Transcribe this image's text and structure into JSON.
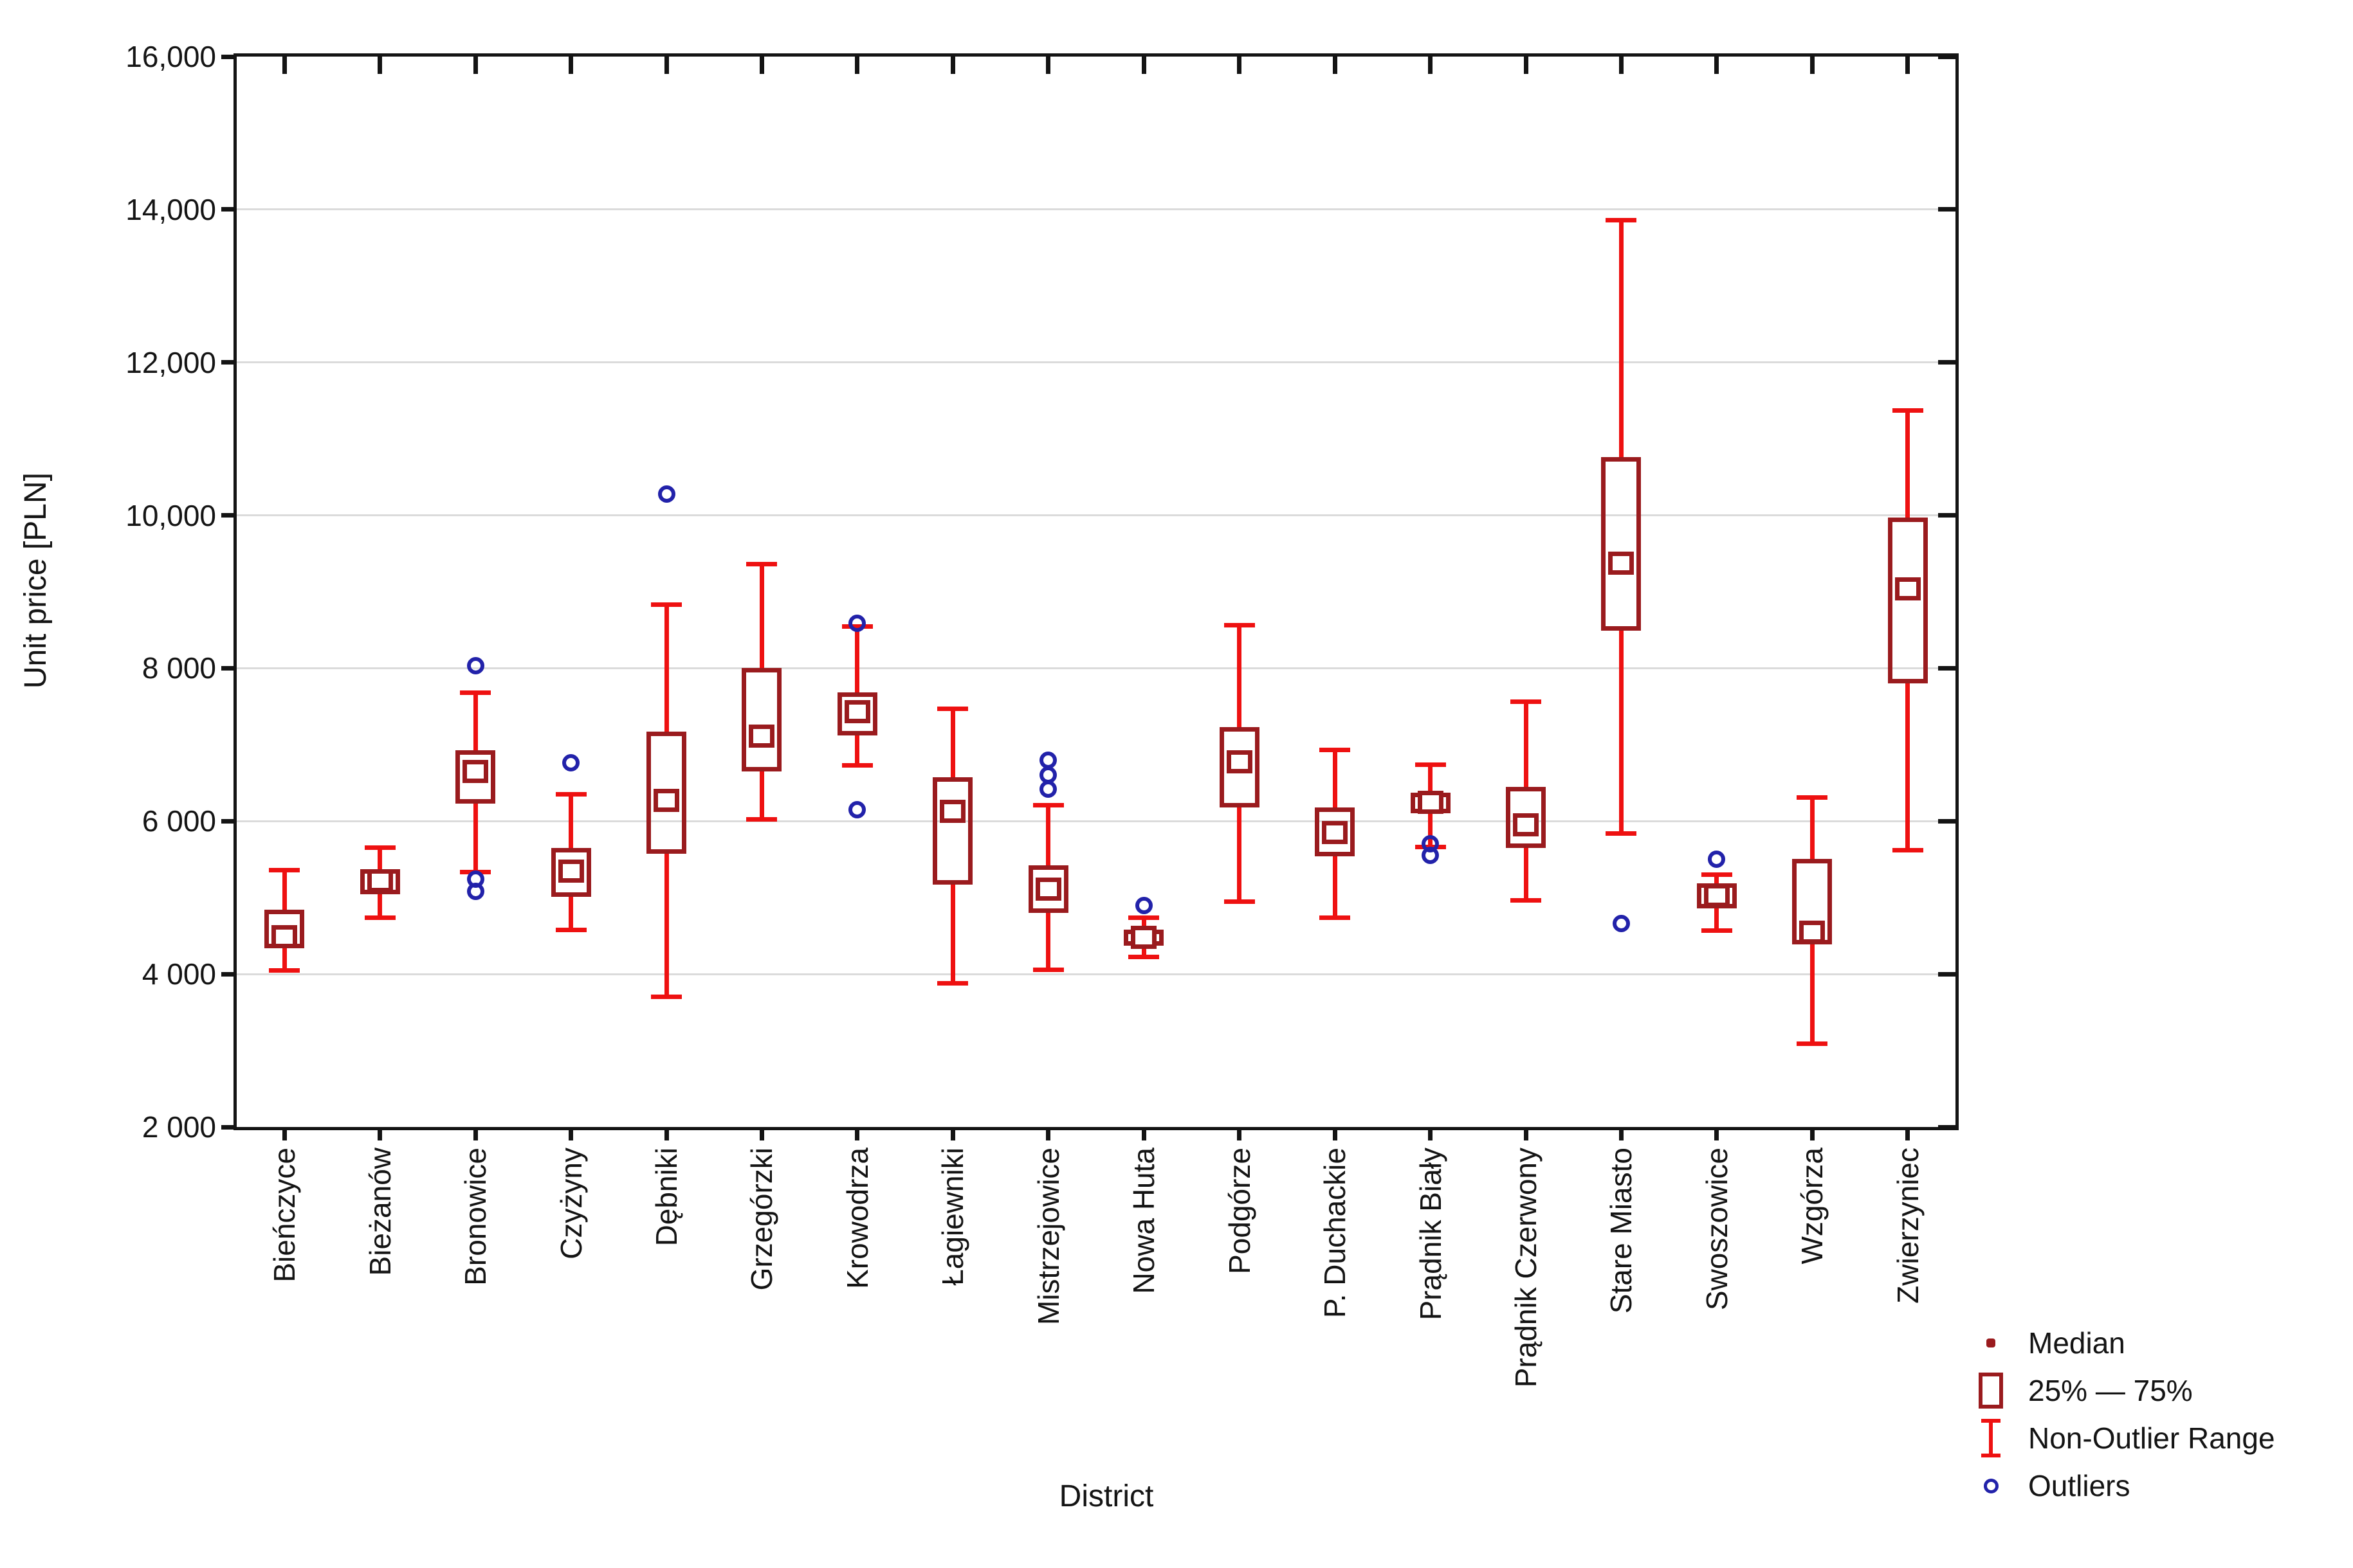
{
  "figure": {
    "y_axis_title": "Unit price [PLN]",
    "x_axis_title": "District"
  },
  "legend": {
    "items": [
      {
        "key": "median",
        "label": "Median"
      },
      {
        "key": "iqr",
        "label": "25% — 75%"
      },
      {
        "key": "range",
        "label": "Non-Outlier Range"
      },
      {
        "key": "outliers",
        "label": "Outliers"
      }
    ]
  },
  "colors": {
    "box_dark_red": "#9A1B1E",
    "whisker_red": "#EE1111",
    "outlier_blue": "#2222AA",
    "gridline_gray": "#DBDBDB",
    "axis_black": "#141414"
  },
  "chart_data": {
    "type": "boxplot",
    "title": "",
    "xlabel": "District",
    "ylabel": "Unit price [PLN]",
    "ylim": [
      2000,
      16000
    ],
    "grid": true,
    "legend_position": "bottom-right",
    "y_ticks": [
      {
        "v": 16000,
        "label": "16,000"
      },
      {
        "v": 14000,
        "label": "14,000"
      },
      {
        "v": 12000,
        "label": "12,000"
      },
      {
        "v": 10000,
        "label": "10,000"
      },
      {
        "v": 8000,
        "label": "8 000"
      },
      {
        "v": 6000,
        "label": "6 000"
      },
      {
        "v": 4000,
        "label": "4 000"
      },
      {
        "v": 2000,
        "label": "2 000"
      }
    ],
    "series": [
      {
        "district": "Bieńczyce",
        "whisker_low": 4050,
        "q25": 4340,
        "median": 4490,
        "q75": 4840,
        "whisker_high": 5360,
        "outliers": []
      },
      {
        "district": "Bieżanów",
        "whisker_low": 4740,
        "q25": 5040,
        "median": 5220,
        "q75": 5370,
        "whisker_high": 5650,
        "outliers": []
      },
      {
        "district": "Bronowice",
        "whisker_low": 5330,
        "q25": 6230,
        "median": 6650,
        "q75": 6930,
        "whisker_high": 7680,
        "outliers": [
          8030,
          5240,
          5080
        ]
      },
      {
        "district": "Czyżyny",
        "whisker_low": 4580,
        "q25": 5010,
        "median": 5350,
        "q75": 5650,
        "whisker_high": 6350,
        "outliers": [
          6760
        ]
      },
      {
        "district": "Dębniki",
        "whisker_low": 3700,
        "q25": 5570,
        "median": 6270,
        "q75": 7170,
        "whisker_high": 8830,
        "outliers": [
          10280
        ]
      },
      {
        "district": "Grzegórzki",
        "whisker_low": 6020,
        "q25": 6650,
        "median": 7110,
        "q75": 8000,
        "whisker_high": 9360,
        "outliers": []
      },
      {
        "district": "Krowodrza",
        "whisker_low": 6730,
        "q25": 7120,
        "median": 7430,
        "q75": 7680,
        "whisker_high": 8550,
        "outliers": [
          8590,
          6150
        ]
      },
      {
        "district": "Łagiewniki",
        "whisker_low": 3880,
        "q25": 5170,
        "median": 6130,
        "q75": 6570,
        "whisker_high": 7470,
        "outliers": []
      },
      {
        "district": "Mistrzejowice",
        "whisker_low": 4060,
        "q25": 4800,
        "median": 5110,
        "q75": 5420,
        "whisker_high": 6210,
        "outliers": [
          6800,
          6600,
          6420
        ]
      },
      {
        "district": "Nowa Huta",
        "whisker_low": 4220,
        "q25": 4370,
        "median": 4480,
        "q75": 4580,
        "whisker_high": 4740,
        "outliers": [
          4900
        ]
      },
      {
        "district": "Podgórze",
        "whisker_low": 4950,
        "q25": 6180,
        "median": 6780,
        "q75": 7230,
        "whisker_high": 8560,
        "outliers": []
      },
      {
        "district": "P. Duchackie",
        "whisker_low": 4740,
        "q25": 5540,
        "median": 5850,
        "q75": 6180,
        "whisker_high": 6930,
        "outliers": []
      },
      {
        "district": "Prądnik Biały",
        "whisker_low": 5660,
        "q25": 6100,
        "median": 6250,
        "q75": 6370,
        "whisker_high": 6740,
        "outliers": [
          5700,
          5550
        ]
      },
      {
        "district": "Prądnik Czerwony",
        "whisker_low": 4960,
        "q25": 5650,
        "median": 5950,
        "q75": 6450,
        "whisker_high": 7560,
        "outliers": []
      },
      {
        "district": "Stare Miasto",
        "whisker_low": 5840,
        "q25": 8490,
        "median": 9370,
        "q75": 10760,
        "whisker_high": 13860,
        "outliers": [
          4660
        ]
      },
      {
        "district": "Swoszowice",
        "whisker_low": 4570,
        "q25": 4860,
        "median": 5030,
        "q75": 5190,
        "whisker_high": 5300,
        "outliers": [
          5500
        ]
      },
      {
        "district": "Wzgórza",
        "whisker_low": 3090,
        "q25": 4390,
        "median": 4550,
        "q75": 5510,
        "whisker_high": 6310,
        "outliers": []
      },
      {
        "district": "Zwierzyniec",
        "whisker_low": 5620,
        "q25": 7800,
        "median": 9040,
        "q75": 9970,
        "whisker_high": 11370,
        "outliers": []
      }
    ]
  }
}
